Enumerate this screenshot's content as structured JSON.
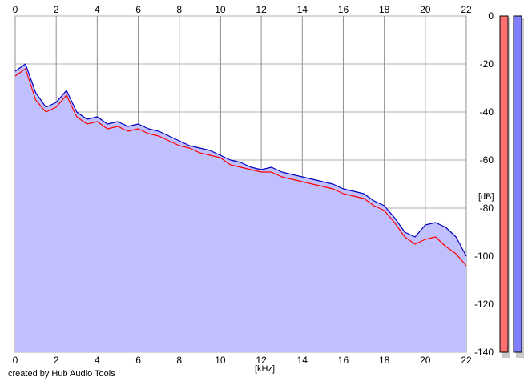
{
  "credit": "created by Hub Audio Tools",
  "chart_data": {
    "type": "line",
    "xlabel": "[kHz]",
    "ylabel": "[dB]",
    "xlim": [
      0,
      22
    ],
    "ylim": [
      -140,
      0
    ],
    "x_ticks": [
      0,
      2,
      4,
      6,
      8,
      10,
      12,
      14,
      16,
      18,
      20,
      22
    ],
    "y_ticks": [
      0,
      -20,
      -40,
      -60,
      -80,
      -100,
      -120,
      -140
    ],
    "grid": true,
    "x": [
      0.0,
      0.5,
      1.0,
      1.5,
      2.0,
      2.5,
      3.0,
      3.5,
      4.0,
      4.5,
      5.0,
      5.5,
      6.0,
      6.5,
      7.0,
      7.5,
      8.0,
      8.5,
      9.0,
      9.5,
      10.0,
      10.5,
      11.0,
      11.5,
      12.0,
      12.5,
      13.0,
      13.5,
      14.0,
      14.5,
      15.0,
      15.5,
      16.0,
      16.5,
      17.0,
      17.5,
      18.0,
      18.5,
      19.0,
      19.5,
      20.0,
      20.5,
      21.0,
      21.5,
      22.0
    ],
    "series": [
      {
        "color": "#ff0000",
        "values": [
          -25,
          -22,
          -35,
          -40,
          -38,
          -33,
          -42,
          -45,
          -44,
          -47,
          -46,
          -48,
          -47,
          -49,
          -50,
          -52,
          -54,
          -55,
          -57,
          -58,
          -59,
          -62,
          -63,
          -64,
          -65,
          -65,
          -67,
          -68,
          -69,
          -70,
          -71,
          -72,
          -74,
          -75,
          -76,
          -79,
          -81,
          -86,
          -92,
          -95,
          -93,
          -92,
          -96,
          -99,
          -104
        ]
      },
      {
        "color": "#0000c0",
        "values": [
          -23,
          -20,
          -32,
          -38,
          -36,
          -31,
          -40,
          -43,
          -42,
          -45,
          -44,
          -46,
          -45,
          -47,
          -48,
          -50,
          -52,
          -54,
          -55,
          -56,
          -58,
          -60,
          -61,
          -63,
          -64,
          -63,
          -65,
          -66,
          -67,
          -68,
          -69,
          -70,
          -72,
          -73,
          -74,
          -77,
          -79,
          -84,
          -90,
          -92,
          -87,
          -86,
          -88,
          -92,
          -100
        ]
      }
    ],
    "level_meters": [
      {
        "color": "#ff7070"
      },
      {
        "color": "#8080ff"
      }
    ],
    "fill_color": "#c0c0ff"
  }
}
